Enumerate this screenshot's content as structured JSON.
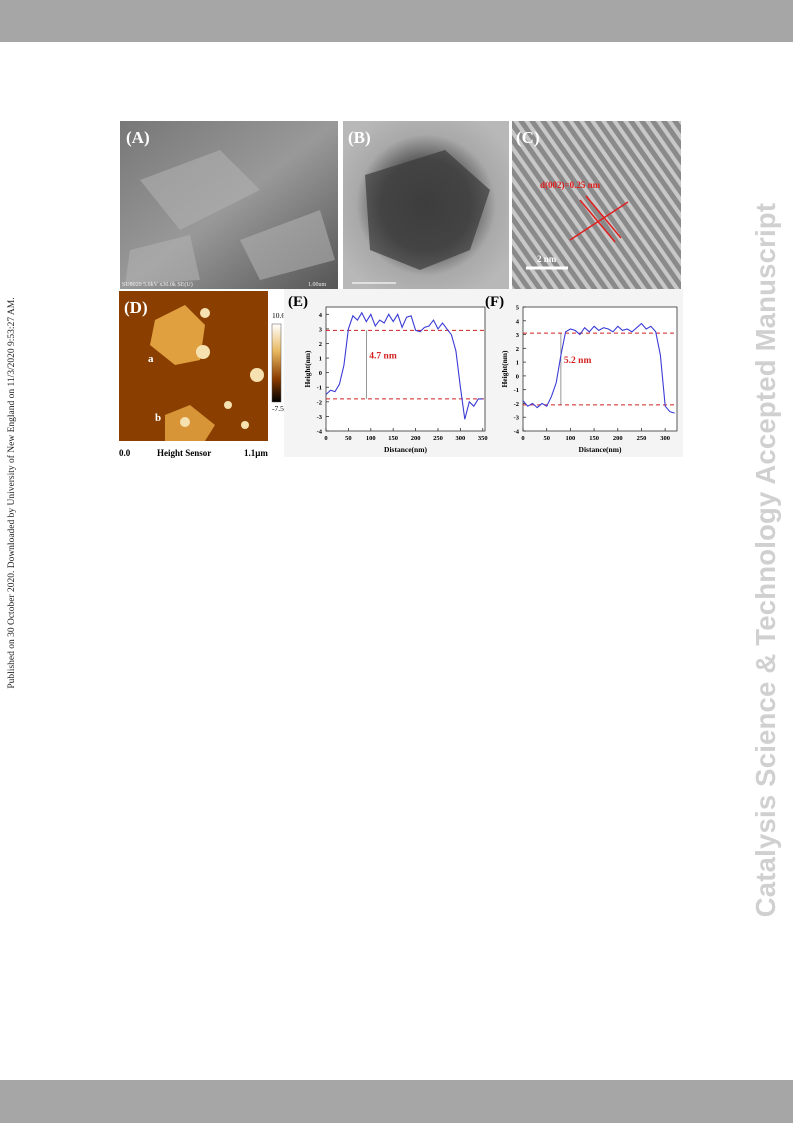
{
  "side_note": "Published on 30 October 2020. Downloaded by University of New England on 11/3/2020 9:53:27 AM.",
  "watermark": "Catalysis Science & Technology Accepted Manuscript",
  "figure": {
    "panel_a": {
      "label": "(A)",
      "caption": "SU8020 5.0kV x30.0k SE(U)",
      "scale": "1.00um"
    },
    "panel_b": {
      "label": "(B)"
    },
    "panel_c": {
      "label": "(C)",
      "annotation": "d(002)=0.25 nm",
      "scale": "2 nm"
    },
    "panel_d": {
      "label": "(D)",
      "marks": [
        "a",
        "b"
      ],
      "colorbar_max": "10.6 nm",
      "colorbar_min": "-7.5 nm",
      "axis_start": "0.0",
      "axis_title": "Height Sensor",
      "axis_end": "1.1μm"
    }
  },
  "chart_data": [
    {
      "type": "line",
      "title": "(E)",
      "xlabel": "Distance(nm)",
      "ylabel": "Height(nm)",
      "color": "#3b3bd6",
      "x": [
        0,
        10,
        20,
        30,
        40,
        50,
        60,
        70,
        80,
        90,
        100,
        110,
        120,
        130,
        140,
        150,
        160,
        170,
        180,
        190,
        200,
        210,
        220,
        230,
        240,
        250,
        260,
        270,
        280,
        290,
        300,
        310,
        320,
        330,
        340,
        350
      ],
      "values": [
        -1.5,
        -1.2,
        -1.3,
        -0.8,
        0.5,
        3.0,
        3.9,
        3.6,
        4.1,
        3.5,
        4.0,
        3.2,
        3.6,
        3.4,
        4.0,
        3.5,
        4.0,
        3.1,
        3.8,
        3.9,
        2.9,
        2.8,
        3.1,
        3.2,
        3.6,
        3.0,
        3.4,
        3.0,
        2.6,
        1.5,
        -1.0,
        -3.2,
        -2.0,
        -2.3,
        -1.8,
        -1.8
      ],
      "xlim": [
        0,
        355
      ],
      "ylim": [
        -4,
        4.5
      ],
      "xticks": [
        0,
        50,
        100,
        150,
        200,
        250,
        300,
        350
      ],
      "yticks": [
        -4,
        -3,
        -2,
        -1,
        0,
        1,
        2,
        3,
        4
      ],
      "reference_lines": [
        2.9,
        -1.8
      ],
      "annotation": "4.7 nm"
    },
    {
      "type": "line",
      "title": "(F)",
      "xlabel": "Distance(nm)",
      "ylabel": "Height(nm)",
      "color": "#3b3bd6",
      "x": [
        0,
        10,
        20,
        30,
        40,
        50,
        60,
        70,
        80,
        90,
        100,
        110,
        120,
        130,
        140,
        150,
        160,
        170,
        180,
        190,
        200,
        210,
        220,
        230,
        240,
        250,
        260,
        270,
        280,
        290,
        300,
        310,
        320
      ],
      "values": [
        -1.8,
        -2.2,
        -2.0,
        -2.3,
        -2.0,
        -2.2,
        -1.5,
        -0.5,
        1.5,
        3.2,
        3.4,
        3.3,
        3.0,
        3.5,
        3.2,
        3.6,
        3.3,
        3.5,
        3.4,
        3.2,
        3.6,
        3.3,
        3.4,
        3.2,
        3.5,
        3.8,
        3.4,
        3.6,
        3.2,
        1.5,
        -2.2,
        -2.6,
        -2.7
      ],
      "xlim": [
        0,
        325
      ],
      "ylim": [
        -4,
        5
      ],
      "xticks": [
        0,
        50,
        100,
        150,
        200,
        250,
        300
      ],
      "yticks": [
        -4,
        -3,
        -2,
        -1,
        0,
        1,
        2,
        3,
        4,
        5
      ],
      "reference_lines": [
        3.1,
        -2.1
      ],
      "annotation": "5.2 nm"
    }
  ]
}
